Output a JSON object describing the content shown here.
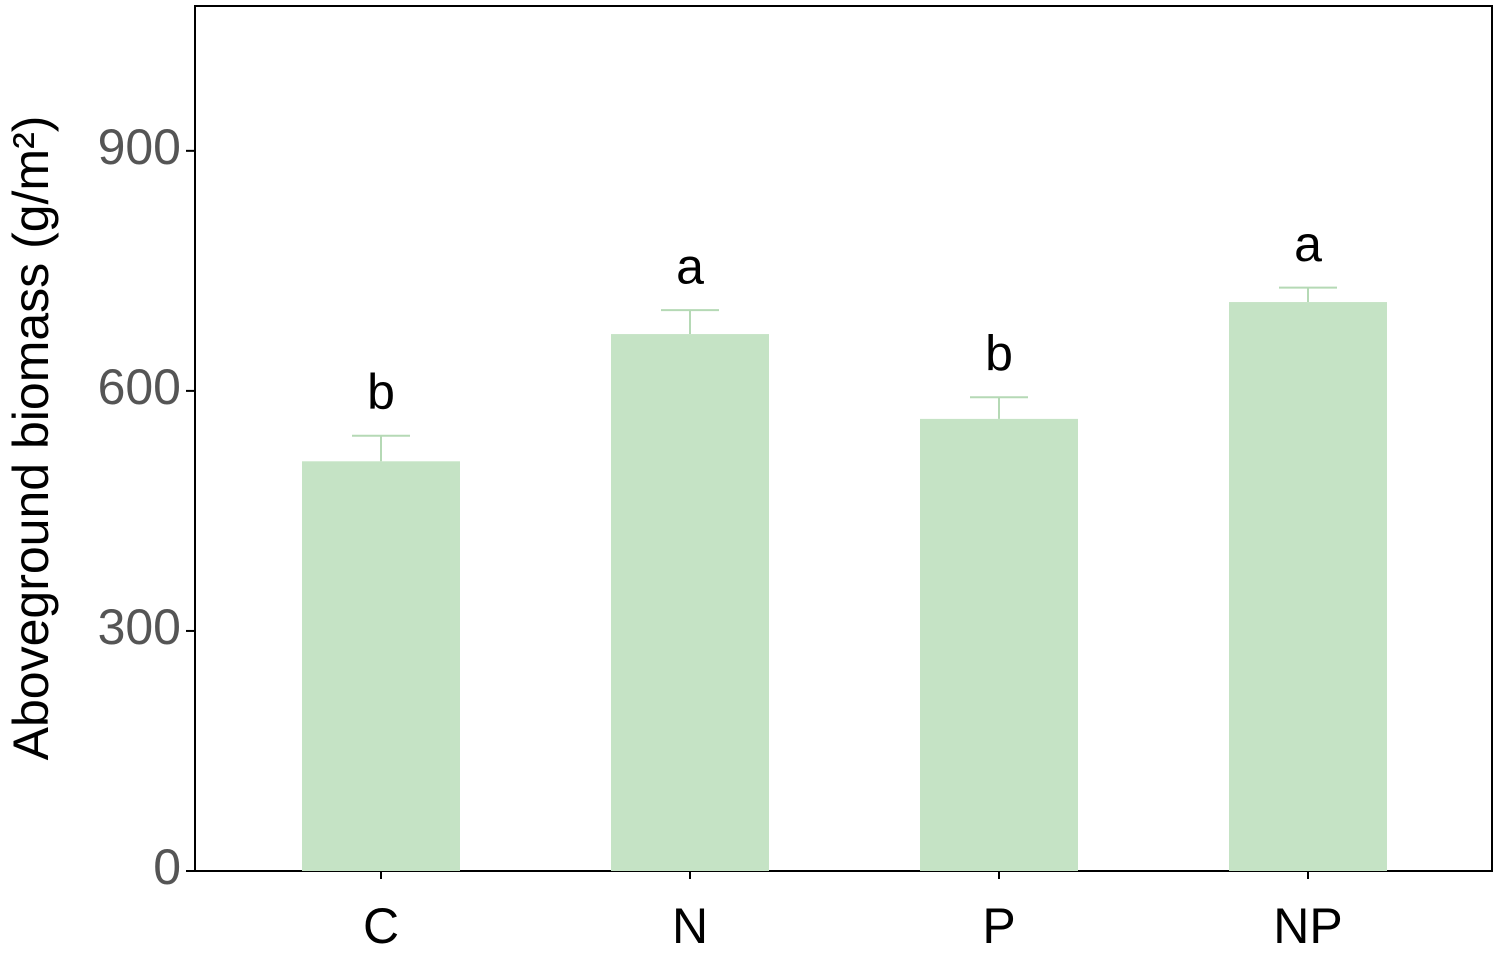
{
  "chart_data": {
    "type": "bar",
    "y_axis_label": "Aboveground biomass (g/m²)",
    "categories": [
      "C",
      "N",
      "P",
      "NP"
    ],
    "values": [
      512,
      671,
      565,
      711
    ],
    "errors": [
      32,
      30,
      27,
      18
    ],
    "significance_letters": [
      "b",
      "a",
      "b",
      "a"
    ],
    "color": "#c5e3c5",
    "ylim": [
      0,
      1081
    ],
    "yticks": [
      0,
      300,
      600,
      900
    ],
    "grid": false
  }
}
